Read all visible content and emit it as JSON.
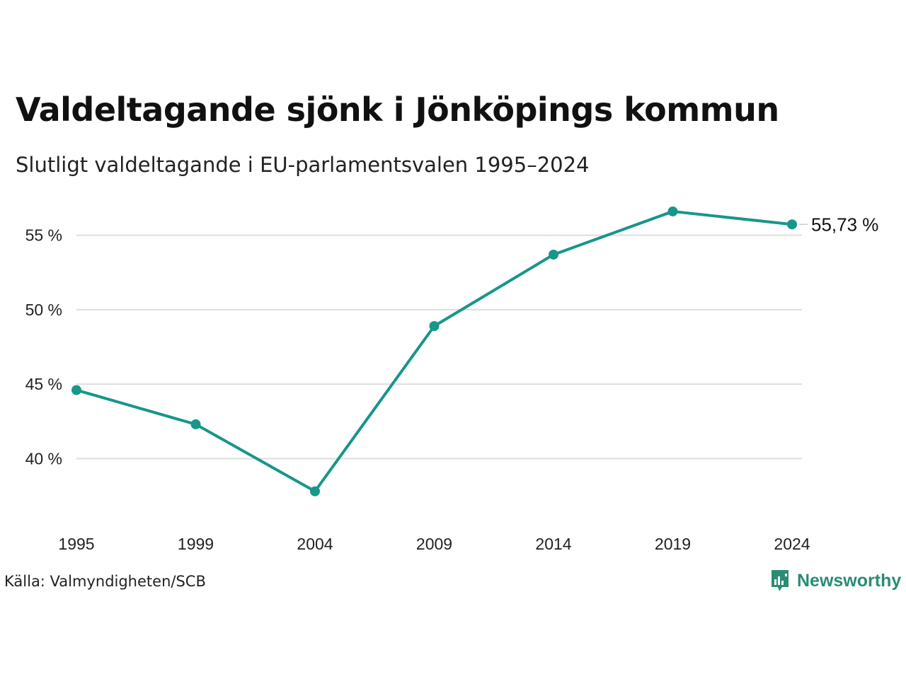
{
  "colors": {
    "series": "#17968a",
    "grid": "#dddddd",
    "brand": "#2a8c74"
  },
  "header": {
    "title": "Valdeltagande sjönk i Jönköpings kommun",
    "subtitle": "Slutligt valdeltagande i EU-parlamentsvalen 1995–2024"
  },
  "footer": {
    "source": "Källa: Valmyndigheten/SCB",
    "brand_name": "Newsworthy",
    "brand_icon": "newsworthy-logo-icon"
  },
  "chart_data": {
    "type": "line",
    "title": "Valdeltagande sjönk i Jönköpings kommun",
    "subtitle": "Slutligt valdeltagande i EU-parlamentsvalen 1995–2024",
    "xlabel": "",
    "ylabel": "",
    "categories": [
      "1995",
      "1999",
      "2004",
      "2009",
      "2014",
      "2019",
      "2024"
    ],
    "series": [
      {
        "values": [
          44.6,
          42.3,
          37.8,
          48.9,
          53.7,
          56.6,
          55.73
        ]
      }
    ],
    "ylim": [
      36.5,
      57.5
    ],
    "yticks": [
      40,
      45,
      50,
      55
    ],
    "ytick_labels": [
      "40 %",
      "45 %",
      "50 %",
      "55 %"
    ],
    "end_label": "55,73 %",
    "grid": true,
    "markers": true
  }
}
